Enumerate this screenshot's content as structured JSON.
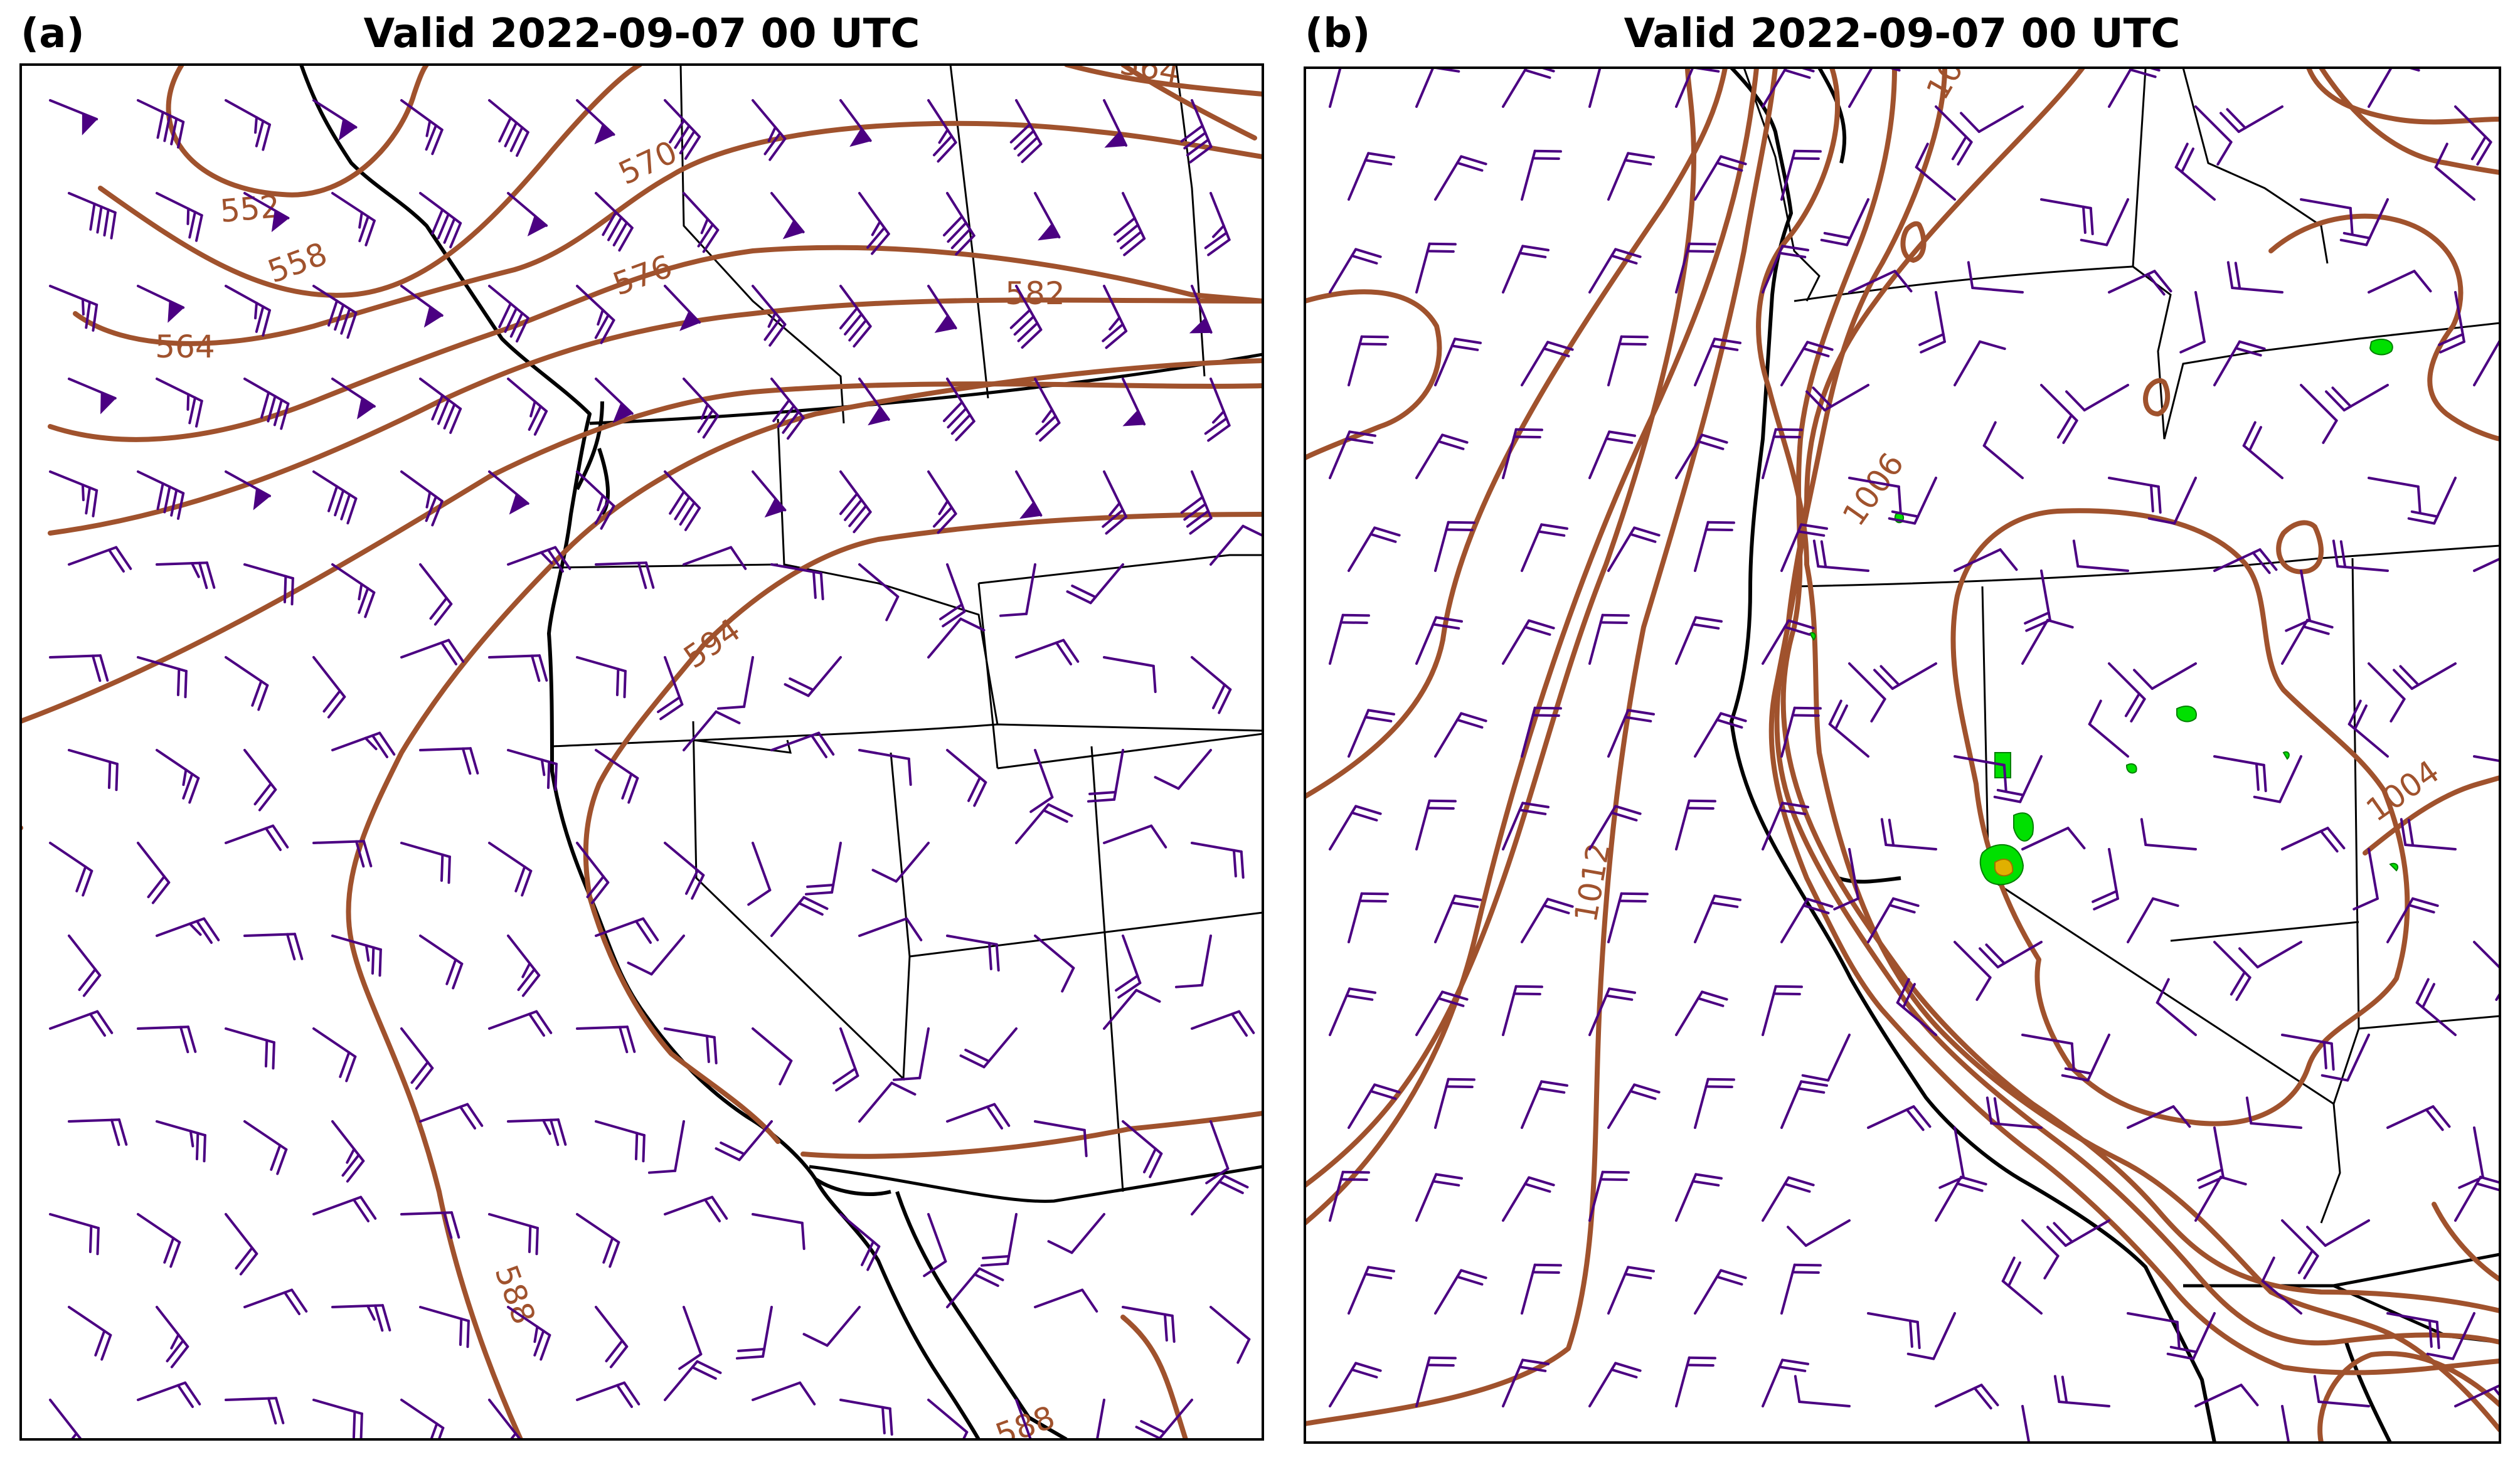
{
  "panels": [
    {
      "label": "(a)",
      "title": "Valid 2022-09-07 00 UTC",
      "contour_labels": [
        "552",
        "558",
        "564",
        "570",
        "576",
        "582",
        "594",
        "588",
        "564",
        "588"
      ]
    },
    {
      "label": "(b)",
      "title": "Valid 2022-09-07 00 UTC",
      "contour_labels": [
        "1006",
        "1012",
        "1004",
        "10"
      ]
    }
  ],
  "colors": {
    "contour": "#a0522d",
    "barb": "#4b0082",
    "precip_light": "#00e000",
    "precip_heavy": "#e0b000"
  }
}
